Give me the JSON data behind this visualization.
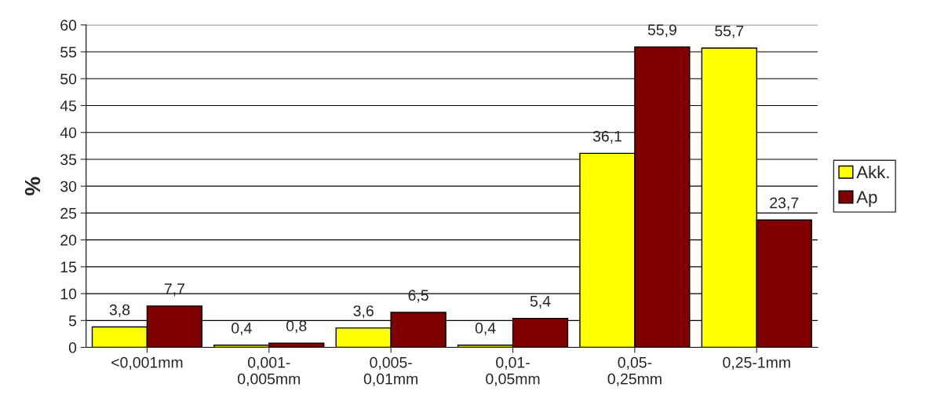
{
  "chart_data": {
    "type": "bar",
    "ylabel": "%",
    "categories": [
      "<0,001mm",
      "0,001-\n0,005mm",
      "0,005-\n0,01mm",
      "0,01-\n0,05mm",
      "0,05-\n0,25mm",
      "0,25-1mm"
    ],
    "series": [
      {
        "name": "Akk.",
        "color": "#ffff00",
        "values": [
          3.8,
          0.4,
          3.6,
          0.4,
          36.1,
          55.7
        ],
        "value_labels": [
          "3,8",
          "0,4",
          "3,6",
          "0,4",
          "36,1",
          "55,7"
        ]
      },
      {
        "name": "Ap",
        "color": "#800000",
        "values": [
          7.7,
          0.8,
          6.5,
          5.4,
          55.9,
          23.7
        ],
        "value_labels": [
          "7,7",
          "0,8",
          "6,5",
          "5,4",
          "55,9",
          "23,7"
        ]
      }
    ],
    "ylim": [
      0,
      60
    ],
    "yticks": [
      0,
      5,
      10,
      15,
      20,
      25,
      30,
      35,
      40,
      45,
      50,
      55,
      60
    ],
    "grid": "y",
    "legend": "right"
  }
}
